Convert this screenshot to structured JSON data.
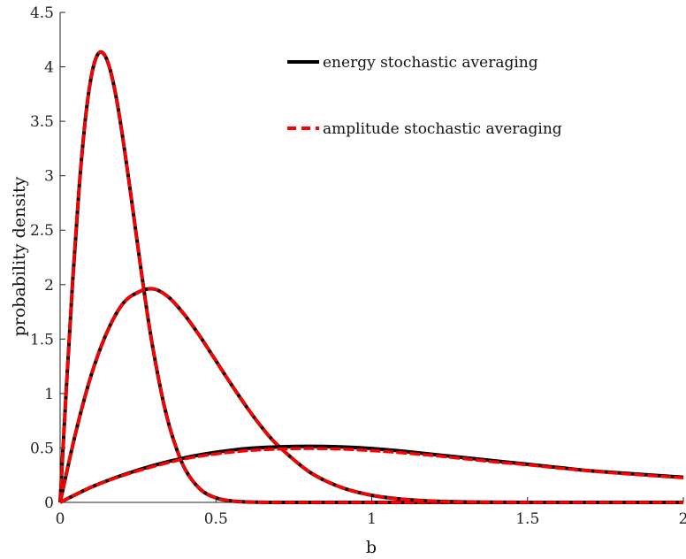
{
  "chart_data": {
    "type": "line",
    "title": "",
    "xlabel": "b",
    "ylabel": "probability density",
    "xlim": [
      0,
      2
    ],
    "ylim": [
      0,
      4.5
    ],
    "xticks": [
      0,
      0.5,
      1,
      1.5,
      2
    ],
    "xtick_labels": [
      "0",
      "0.5",
      "1",
      "1.5",
      "2"
    ],
    "yticks": [
      0,
      0.5,
      1,
      1.5,
      2,
      2.5,
      3,
      3.5,
      4,
      4.5
    ],
    "ytick_labels": [
      "0",
      "0.5",
      "1",
      "1.5",
      "2",
      "2.5",
      "3",
      "3.5",
      "4",
      "4.5"
    ],
    "grid": false,
    "legend_position": "top-right",
    "legend": [
      {
        "label": "energy stochastic averaging",
        "color": "#000000",
        "style": "solid"
      },
      {
        "label": "amplitude stochastic averaging",
        "color": "#ff0000",
        "style": "dashed"
      }
    ],
    "series": [
      {
        "group": 1,
        "method": "energy stochastic averaging",
        "color": "#000000",
        "style": "solid",
        "x": [
          0,
          0.02,
          0.04,
          0.06,
          0.08,
          0.1,
          0.12,
          0.14,
          0.16,
          0.18,
          0.2,
          0.22,
          0.24,
          0.26,
          0.28,
          0.3,
          0.33,
          0.36,
          0.4,
          0.45,
          0.5,
          0.55,
          0.6,
          0.7,
          0.8,
          1.0,
          1.2,
          1.5,
          2.0
        ],
        "y": [
          0,
          1.05,
          2.02,
          2.85,
          3.49,
          3.91,
          4.11,
          4.12,
          3.98,
          3.72,
          3.37,
          2.97,
          2.55,
          2.13,
          1.73,
          1.38,
          0.94,
          0.61,
          0.31,
          0.12,
          0.042,
          0.013,
          0.004,
          0,
          0,
          0,
          0,
          0,
          0
        ]
      },
      {
        "group": 1,
        "method": "amplitude stochastic averaging",
        "color": "#ff0000",
        "style": "dashed",
        "x": [
          0,
          0.02,
          0.04,
          0.06,
          0.08,
          0.1,
          0.12,
          0.14,
          0.16,
          0.18,
          0.2,
          0.22,
          0.24,
          0.26,
          0.28,
          0.3,
          0.33,
          0.36,
          0.4,
          0.45,
          0.5,
          0.55,
          0.6,
          0.7,
          0.8,
          1.0,
          1.2,
          1.5,
          2.0
        ],
        "y": [
          0,
          1.05,
          2.02,
          2.85,
          3.49,
          3.91,
          4.11,
          4.12,
          3.98,
          3.72,
          3.37,
          2.97,
          2.55,
          2.13,
          1.73,
          1.38,
          0.94,
          0.61,
          0.31,
          0.12,
          0.042,
          0.013,
          0.004,
          0,
          0,
          0,
          0,
          0,
          0
        ]
      },
      {
        "group": 2,
        "method": "energy stochastic averaging",
        "color": "#000000",
        "style": "solid",
        "x": [
          0,
          0.05,
          0.1,
          0.15,
          0.2,
          0.25,
          0.3,
          0.35,
          0.4,
          0.45,
          0.5,
          0.55,
          0.6,
          0.65,
          0.7,
          0.8,
          0.9,
          1.0,
          1.1,
          1.2,
          1.3,
          1.5,
          2.0
        ],
        "y": [
          0,
          0.64,
          1.17,
          1.56,
          1.82,
          1.93,
          1.96,
          1.88,
          1.72,
          1.52,
          1.3,
          1.08,
          0.87,
          0.68,
          0.52,
          0.28,
          0.14,
          0.065,
          0.028,
          0.011,
          0.004,
          0,
          0
        ]
      },
      {
        "group": 2,
        "method": "amplitude stochastic averaging",
        "color": "#ff0000",
        "style": "dashed",
        "x": [
          0,
          0.05,
          0.1,
          0.15,
          0.2,
          0.25,
          0.3,
          0.35,
          0.4,
          0.45,
          0.5,
          0.55,
          0.6,
          0.65,
          0.7,
          0.8,
          0.9,
          1.0,
          1.1,
          1.2,
          1.3,
          1.5,
          2.0
        ],
        "y": [
          0,
          0.64,
          1.17,
          1.56,
          1.82,
          1.93,
          1.96,
          1.88,
          1.72,
          1.52,
          1.3,
          1.08,
          0.87,
          0.68,
          0.52,
          0.28,
          0.14,
          0.065,
          0.028,
          0.011,
          0.004,
          0,
          0
        ]
      },
      {
        "group": 3,
        "method": "energy stochastic averaging",
        "color": "#000000",
        "style": "solid",
        "x": [
          0,
          0.1,
          0.2,
          0.3,
          0.4,
          0.5,
          0.6,
          0.7,
          0.8,
          0.9,
          1.0,
          1.1,
          1.2,
          1.3,
          1.4,
          1.5,
          1.6,
          1.7,
          1.8,
          1.9,
          2.0
        ],
        "y": [
          0,
          0.14,
          0.25,
          0.34,
          0.41,
          0.46,
          0.495,
          0.51,
          0.515,
          0.51,
          0.495,
          0.47,
          0.44,
          0.41,
          0.38,
          0.35,
          0.32,
          0.29,
          0.27,
          0.25,
          0.23
        ]
      },
      {
        "group": 3,
        "method": "amplitude stochastic averaging",
        "color": "#ff0000",
        "style": "dashed",
        "x": [
          0,
          0.1,
          0.2,
          0.3,
          0.4,
          0.5,
          0.6,
          0.7,
          0.8,
          0.9,
          1.0,
          1.1,
          1.2,
          1.3,
          1.4,
          1.5,
          1.6,
          1.7,
          1.8,
          1.9,
          2.0
        ],
        "y": [
          0,
          0.14,
          0.245,
          0.33,
          0.4,
          0.445,
          0.475,
          0.49,
          0.495,
          0.49,
          0.475,
          0.455,
          0.43,
          0.4,
          0.37,
          0.345,
          0.315,
          0.29,
          0.265,
          0.245,
          0.225
        ]
      }
    ]
  }
}
